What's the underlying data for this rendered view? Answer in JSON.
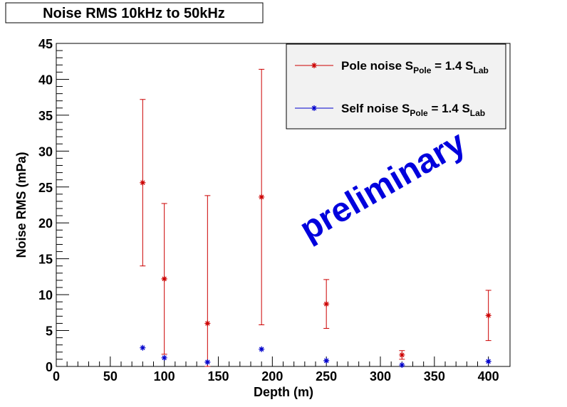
{
  "chart_data": {
    "type": "scatter",
    "title": "Noise RMS 10kHz to 50kHz",
    "x_label": "Depth (m)",
    "y_label": "Noise RMS (mPa)",
    "annotation": "preliminary",
    "xlim": [
      0,
      420
    ],
    "ylim": [
      0,
      45
    ],
    "xticks": [
      0,
      50,
      100,
      150,
      200,
      250,
      300,
      350,
      400
    ],
    "yticks": [
      0,
      5,
      10,
      15,
      20,
      25,
      30,
      35,
      40,
      45
    ],
    "legend": "top-right",
    "series": [
      {
        "name": [
          "Pole noise S",
          "Pole",
          " = 1.4 S",
          "Lab"
        ],
        "color": "#cc0000",
        "x": [
          80,
          100,
          140,
          190,
          250,
          320,
          400
        ],
        "values": [
          25.6,
          12.2,
          6.0,
          23.6,
          8.7,
          1.6,
          7.1
        ],
        "errors": [
          11.6,
          10.5,
          17.8,
          17.8,
          3.4,
          0.6,
          3.5
        ]
      },
      {
        "name": [
          "Self noise S",
          "Pole",
          " = 1.4 S",
          "Lab"
        ],
        "color": "#0000cc",
        "x": [
          80,
          100,
          140,
          190,
          250,
          320,
          400
        ],
        "values": [
          2.6,
          1.2,
          0.6,
          2.4,
          0.8,
          0.2,
          0.7
        ]
      }
    ]
  }
}
